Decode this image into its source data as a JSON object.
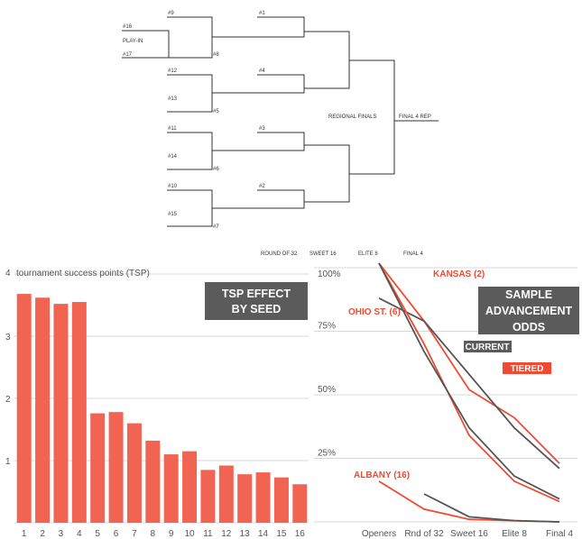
{
  "bracket": {
    "play_in": "PLAY-IN",
    "seeds_r1": [
      "#16",
      "#17",
      "#9",
      "#8",
      "#12",
      "#13",
      "#5",
      "#11",
      "#14",
      "#6",
      "#10",
      "#15",
      "#7"
    ],
    "seeds_r2": [
      "#1",
      "#4",
      "#3",
      "#2"
    ],
    "regional_finals": "REGIONAL FINALS",
    "final4_rep": "FINAL 4 REP",
    "rounds": [
      "ROUND OF 32",
      "SWEET 16",
      "ELITE 8",
      "FINAL 4"
    ]
  },
  "chart_data": [
    {
      "type": "bar",
      "title": "TSP EFFECT BY SEED",
      "ylabel": "tournament success points (TSP)",
      "categories": [
        "1",
        "2",
        "3",
        "4",
        "5",
        "6",
        "7",
        "8",
        "9",
        "10",
        "11",
        "12",
        "13",
        "14",
        "15",
        "16"
      ],
      "values": [
        3.68,
        3.62,
        3.52,
        3.55,
        1.76,
        1.78,
        1.6,
        1.32,
        1.1,
        1.15,
        0.85,
        0.92,
        0.78,
        0.81,
        0.73,
        0.62
      ],
      "yticks": [
        "1",
        "2",
        "3",
        "4"
      ],
      "ylim": [
        0,
        4
      ],
      "color": "#f26452"
    },
    {
      "type": "line",
      "title": "SAMPLE ADVANCEMENT ODDS",
      "categories": [
        "Openers",
        "Rnd of 32",
        "Sweet 16",
        "Elite 8",
        "Final 4"
      ],
      "yticks": [
        "25%",
        "50%",
        "75%",
        "100%"
      ],
      "ylim": [
        0,
        100
      ],
      "legend": [
        "CURRENT",
        "TIERED"
      ],
      "series": [
        {
          "name": "KANSAS (2)",
          "model": "tiered",
          "values": [
            102,
            79,
            52,
            41,
            23
          ]
        },
        {
          "name": "KANSAS (2)",
          "model": "current",
          "values": [
            88,
            79,
            58,
            37,
            21
          ]
        },
        {
          "name": "OHIO ST. (6)",
          "model": "tiered",
          "values": [
            102,
            70,
            34,
            16,
            8
          ]
        },
        {
          "name": "OHIO ST. (6)",
          "model": "current",
          "values": [
            102,
            67,
            37,
            18,
            9
          ]
        },
        {
          "name": "ALBANY (16)",
          "model": "tiered",
          "values": [
            16,
            5,
            1,
            0.5,
            0
          ]
        },
        {
          "name": "ALBANY (16)",
          "model": "current",
          "values": [
            null,
            11,
            2,
            0.5,
            0
          ]
        }
      ],
      "labels": [
        "KANSAS (2)",
        "OHIO ST. (6)",
        "ALBANY (16)"
      ],
      "colors": {
        "tiered": "#f04a32",
        "current": "#555555"
      }
    }
  ]
}
